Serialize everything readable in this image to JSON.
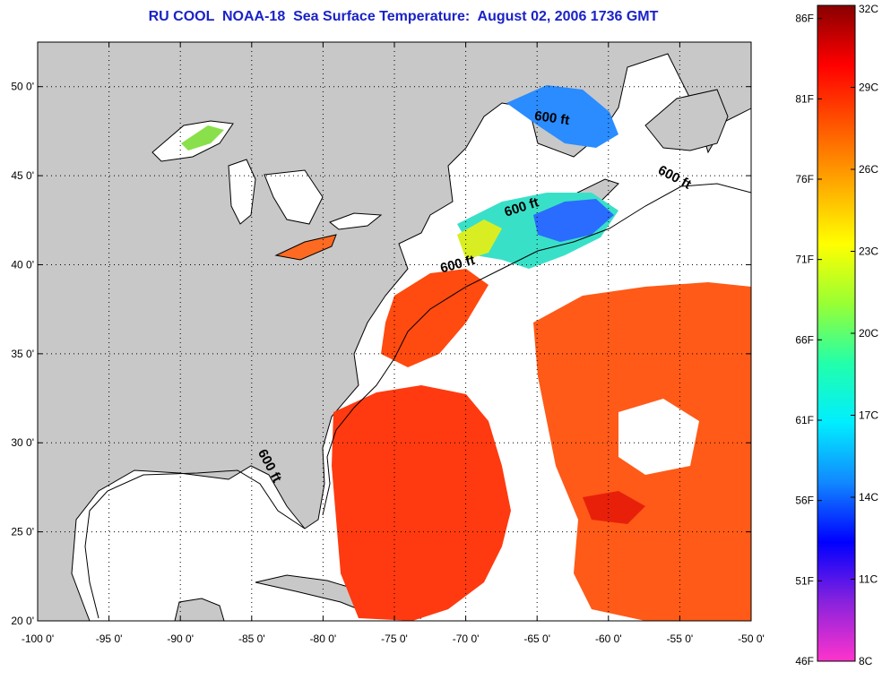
{
  "title": "RU COOL  NOAA-18  Sea Surface Temperature:  August 02, 2006 1736 GMT",
  "map": {
    "lon_range": [
      -100,
      -50
    ],
    "lat_range": [
      20,
      52.5
    ],
    "lon_ticks": [
      {
        "lon": -100,
        "label": "-100 0'"
      },
      {
        "lon": -95,
        "label": "-95 0'"
      },
      {
        "lon": -90,
        "label": "-90 0'"
      },
      {
        "lon": -85,
        "label": "-85 0'"
      },
      {
        "lon": -80,
        "label": "-80 0'"
      },
      {
        "lon": -75,
        "label": "-75 0'"
      },
      {
        "lon": -70,
        "label": "-70 0'"
      },
      {
        "lon": -65,
        "label": "-65 0'"
      },
      {
        "lon": -60,
        "label": "-60 0'"
      },
      {
        "lon": -55,
        "label": "-55 0'"
      },
      {
        "lon": -50,
        "label": "-50 0'"
      }
    ],
    "lat_ticks": [
      {
        "lat": 20,
        "label": "20 0'"
      },
      {
        "lat": 25,
        "label": "25 0'"
      },
      {
        "lat": 30,
        "label": "30 0'"
      },
      {
        "lat": 35,
        "label": "35 0'"
      },
      {
        "lat": 40,
        "label": "40 0'"
      },
      {
        "lat": 45,
        "label": "45 0'"
      },
      {
        "lat": 50,
        "label": "50 0'"
      }
    ],
    "contour_labels": [
      {
        "text": "600 ft",
        "lon": -64.0,
        "lat": 48.0,
        "angle": 8
      },
      {
        "text": "600 ft",
        "lon": -55.5,
        "lat": 44.7,
        "angle": 28
      },
      {
        "text": "600 ft",
        "lon": -66.0,
        "lat": 43.0,
        "angle": -18
      },
      {
        "text": "600 ft",
        "lon": -70.5,
        "lat": 39.8,
        "angle": -15
      },
      {
        "text": "600 ft",
        "lon": -84.0,
        "lat": 28.6,
        "angle": 62
      }
    ],
    "colors": {
      "land": "#c8c8c8",
      "water": "#ffffff",
      "coast": "#000000"
    }
  },
  "colorbar": {
    "left_labels": [
      "46F",
      "51F",
      "56F",
      "61F",
      "66F",
      "71F",
      "76F",
      "81F",
      "86F"
    ],
    "right_labels": [
      "8C",
      "11C",
      "14C",
      "17C",
      "20C",
      "23C",
      "26C",
      "29C",
      "32C"
    ],
    "stops": [
      "#ff33cc",
      "#8822dd",
      "#0000ff",
      "#1188ff",
      "#00eeff",
      "#22ffaa",
      "#99ff33",
      "#ffff00",
      "#ffaa00",
      "#ff5500",
      "#ff0000",
      "#880000"
    ]
  }
}
